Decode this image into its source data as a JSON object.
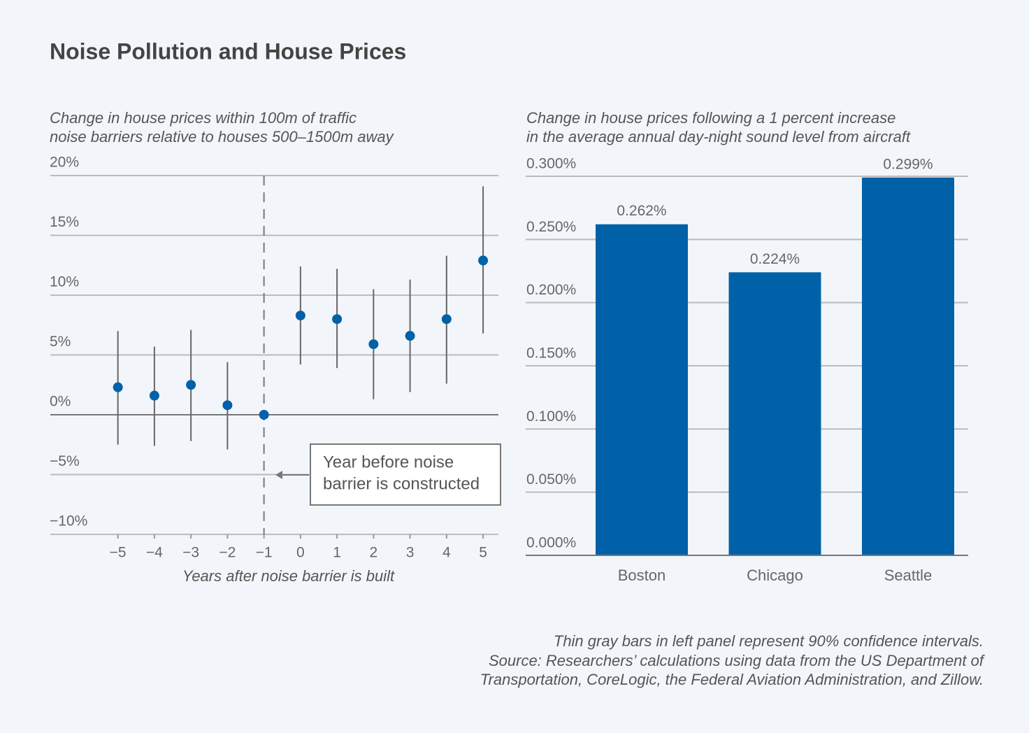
{
  "title": "Noise Pollution and House Prices",
  "notes": [
    "Thin gray bars in left panel represent 90% confidence intervals.",
    "Source: Researchers’ calculations using data from the US Department of",
    "Transportation, CoreLogic, the Federal Aviation Administration, and Zillow."
  ],
  "chart_data": [
    {
      "type": "errorbar",
      "subtitle": [
        "Change in house prices within 100m of traffic",
        "noise barriers relative to houses 500–1500m away"
      ],
      "x_label": "Years after noise barrier is built",
      "x": [
        -5,
        -4,
        -3,
        -2,
        -1,
        0,
        1,
        2,
        3,
        4,
        5
      ],
      "values": [
        2.3,
        1.6,
        2.5,
        0.8,
        0,
        8.3,
        8.0,
        5.9,
        6.6,
        8.0,
        12.9
      ],
      "lower": [
        -2.5,
        -2.6,
        -2.2,
        -2.9,
        null,
        4.2,
        3.9,
        1.3,
        1.9,
        2.6,
        6.8
      ],
      "upper": [
        7.0,
        5.7,
        7.1,
        4.4,
        null,
        12.4,
        12.2,
        10.5,
        11.3,
        13.3,
        19.1
      ],
      "color": "#0061a8",
      "error_color": "#666666",
      "xlim": [
        -6.85,
        5.42
      ],
      "xticks": [
        {
          "value": -5,
          "label": "−5"
        },
        {
          "value": -4,
          "label": "−4"
        },
        {
          "value": -3,
          "label": "−3"
        },
        {
          "value": -2,
          "label": "−2"
        },
        {
          "value": -1,
          "label": "−1"
        },
        0,
        1,
        2,
        3,
        4,
        5
      ],
      "ylim": [
        -10,
        20
      ],
      "yticks": [
        {
          "value": -10,
          "label": "−10%"
        },
        {
          "value": -5,
          "label": "−5%"
        },
        {
          "value": 0,
          "label": "0%"
        },
        {
          "value": 5,
          "label": "5%"
        },
        {
          "value": 10,
          "label": "10%"
        },
        {
          "value": 15,
          "label": "15%"
        },
        {
          "value": 20,
          "label": "20%"
        }
      ],
      "grid": true,
      "reference_x": -1,
      "annotation": [
        "Year before noise",
        "barrier is constructed"
      ]
    },
    {
      "type": "bar",
      "subtitle": [
        "Change in house prices following a 1 percent increase",
        "in the average annual day-night sound level from aircraft"
      ],
      "categories": [
        "Boston",
        "Chicago",
        "Seattle"
      ],
      "values": [
        0.262,
        0.224,
        0.299
      ],
      "value_labels": [
        "0.262%",
        "0.224%",
        "0.299%"
      ],
      "color": "#0061a8",
      "ylim": [
        0,
        0.3
      ],
      "yticks": [
        {
          "value": 0,
          "label": "0.000%"
        },
        {
          "value": 0.05,
          "label": "0.050%"
        },
        {
          "value": 0.1,
          "label": "0.100%"
        },
        {
          "value": 0.15,
          "label": "0.150%"
        },
        {
          "value": 0.2,
          "label": "0.200%"
        },
        {
          "value": 0.25,
          "label": "0.250%"
        },
        {
          "value": 0.3,
          "label": "0.300%"
        }
      ],
      "grid": true
    }
  ]
}
